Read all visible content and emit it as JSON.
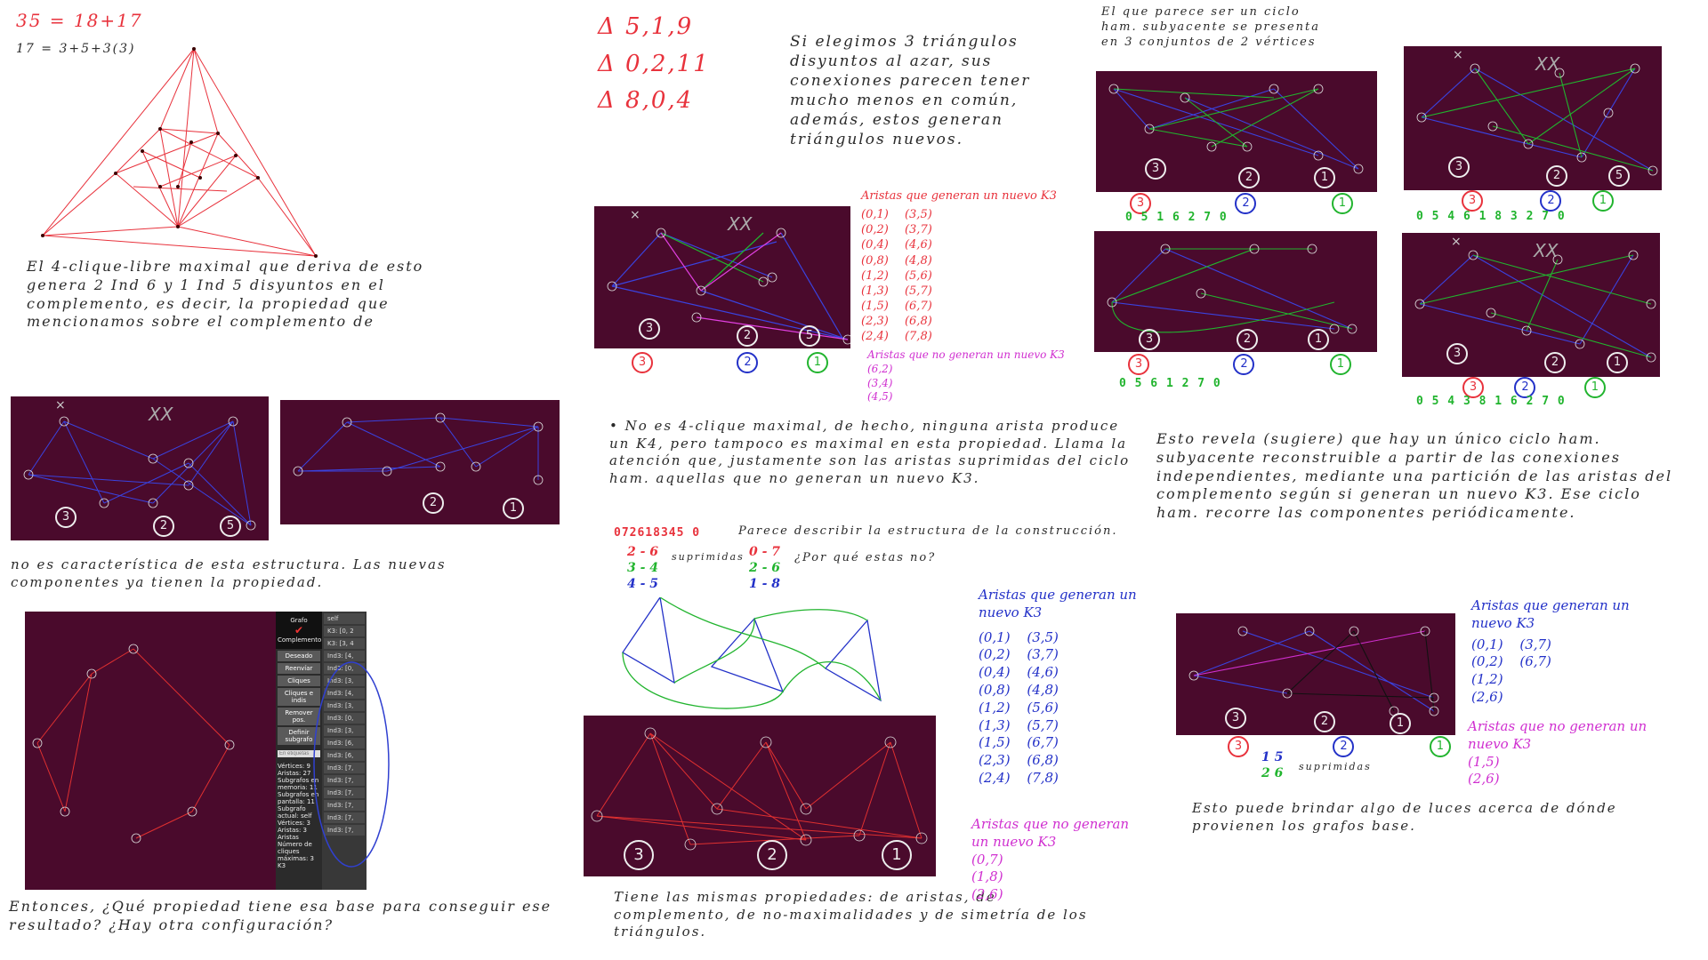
{
  "top_left": {
    "eq1": "35 = 18+17",
    "eq2": "17 = 3+5+3(3)"
  },
  "notes": {
    "left_paragraph": "El 4-clique-libre maximal que deriva de esto genera 2 Ind 6 y 1 Ind 5 disyuntos en el complemento, es decir, la propiedad que mencionamos sobre el complemento de",
    "left_cont": "no es característica de esta estructura. Las nuevas componentes ya tienen la propiedad.",
    "left_bottom": "Entonces, ¿Qué propiedad tiene esa base para conseguir ese resultado? ¿Hay otra configuración?",
    "triangles": [
      "Δ 5,1,9",
      "Δ 0,2,11",
      "Δ 8,0,4"
    ],
    "triangle_note": "Si elegimos 3 triángulos disyuntos al azar, sus conexiones parecen tener mucho menos en común, además, estos generan triángulos nuevos.",
    "center_bullet": "• No es 4-clique maximal, de hecho, ninguna arista produce un K4, pero tampoco es maximal en esta propiedad. Llama la atención que, justamente son las aristas suprimidas del ciclo ham. aquellas que no generan un nuevo K3.",
    "center_caption": "Parece describir la estructura de la construcción.",
    "center_bottom": "Tiene las mismas propiedades: de aristas, de complemento, de no-maximalidades y de simetría de los triángulos.",
    "right_top": "El que parece ser un ciclo ham. subyacente se presenta en 3 conjuntos de 2 vértices",
    "right_paragraph": "Esto revela (sugiere) que hay un único ciclo ham. subyacente reconstruible a partir de las conexiones independientes, mediante una partición de las aristas del complemento según si generan un nuevo K3. Ese ciclo ham. recorre las componentes periódicamente.",
    "right_bottom": "Esto puede brindar algo de luces acerca de dónde provienen los grafos base.",
    "supr1": "suprimidas",
    "por_que": "¿Por qué estas no?",
    "supr2": "suprimidas"
  },
  "edge_lists": {
    "red_title": "Aristas que generan un nuevo K3",
    "red_a": [
      "(0,1)",
      "(0,2)",
      "(0,4)",
      "(0,8)",
      "(1,2)",
      "(1,3)",
      "(1,5)",
      "(2,3)",
      "(2,4)"
    ],
    "red_b": [
      "(3,5)",
      "(3,7)",
      "(4,6)",
      "(4,8)",
      "(5,6)",
      "(5,7)",
      "(6,7)",
      "(6,8)",
      "(7,8)"
    ],
    "mag_title": "Aristas que no generan un nuevo K3",
    "mag_list": [
      "(6,2)",
      "(3,4)",
      "(4,5)"
    ],
    "blue_title": "Aristas que generan un nuevo K3",
    "blue_a": [
      "(0,1)",
      "(0,2)",
      "(0,4)",
      "(0,8)",
      "(1,2)",
      "(1,3)",
      "(1,5)",
      "(2,3)",
      "(2,4)"
    ],
    "blue_b": [
      "(3,5)",
      "(3,7)",
      "(4,6)",
      "(4,8)",
      "(5,6)",
      "(5,7)",
      "(6,7)",
      "(6,8)",
      "(7,8)"
    ],
    "blue_mag_title": "Aristas que no generan un nuevo K3",
    "blue_mag_list": [
      "(0,7)",
      "(1,8)",
      "(2,6)"
    ],
    "right_blue_title": "Aristas que generan un nuevo K3",
    "right_blue_a": [
      "(0,1)",
      "(0,2)",
      "(1,2)",
      "(2,6)"
    ],
    "right_blue_b": [
      "(3,7)",
      "(6,7)"
    ],
    "right_mag_title": "Aristas que no generan un nuevo K3",
    "right_mag_list": [
      "(1,5)",
      "(2,6)"
    ]
  },
  "sequences": {
    "center": "072618345 0",
    "s1": "0 5 1 6 2 7 0",
    "s2": "0 5 4 6 1 8 3 2 7 0",
    "s3": "0 5 6 1 2 7 0",
    "s4": "0 5 4 3 8 1 6 2 7 0",
    "center_left_pairs": [
      "2 - 6",
      "3 - 4",
      "4 - 5"
    ],
    "center_right_pairs": [
      "0 - 7",
      "2 - 6",
      "1 - 8"
    ],
    "right_pairs": [
      "1 5",
      "2 6"
    ]
  },
  "legend": {
    "a": "3",
    "b": "2",
    "c": "1",
    "c5": "5"
  },
  "panel_labels": {
    "xx": "XX",
    "x": "×"
  },
  "sidebar": {
    "title": "Grafo",
    "complement": "Complemento",
    "buttons": [
      "Deseado",
      "Reenvíar",
      "Cliques",
      "Cliques e indis",
      "Remover pos.",
      "Definir subgrafo"
    ],
    "input_placeholder": "En etiquetas",
    "stats": [
      "Vértices: 9",
      "Aristas: 27",
      "Subgrafos en memoria: 11",
      "Subgrafos en pantalla: 11",
      "Subgrafo actual: self",
      "Vértices: 3",
      "Aristas: 3",
      "Aristas",
      "Número de cliques máximas: 3",
      "K3"
    ],
    "rows": [
      "self",
      "K3: [0, 2",
      "K3: [3, 4",
      "Ind3: [4,",
      "Ind3: [0,",
      "Ind3: [3,",
      "Ind3: [4,",
      "Ind3: [3,",
      "Ind3: [0,",
      "Ind3: [3,",
      "Ind3: [6,",
      "Ind3: [6,",
      "Ind3: [7,",
      "Ind3: [7,",
      "Ind3: [7,",
      "Ind3: [7,",
      "Ind3: [7,",
      "Ind3: [7,"
    ]
  },
  "colors": {
    "panel": "#4a0a2c",
    "red": "#e8323c",
    "blue": "#2331c8",
    "green": "#21b42e",
    "magenta": "#d030d0"
  }
}
